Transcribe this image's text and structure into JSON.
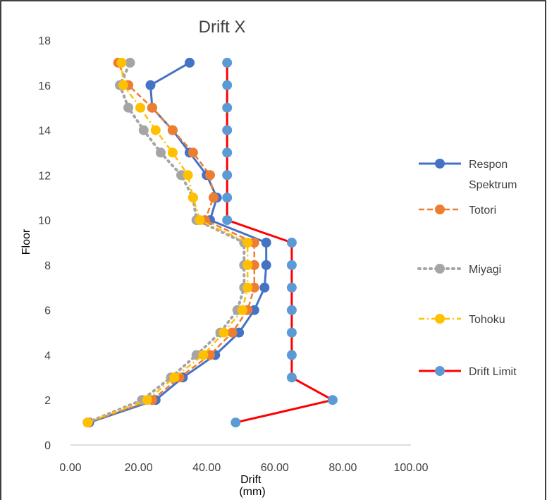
{
  "chart_data": {
    "type": "scatter",
    "title": "Drift X",
    "xlabel": "Drift\n(mm)",
    "ylabel": "Floor",
    "xlim": [
      0,
      100
    ],
    "ylim": [
      0,
      18
    ],
    "xticks": [
      "0.00",
      "20.00",
      "40.00",
      "60.00",
      "80.00",
      "100.00"
    ],
    "yticks": [
      "0",
      "2",
      "4",
      "6",
      "8",
      "10",
      "12",
      "14",
      "16",
      "18"
    ],
    "grid": false,
    "legend_position": "right",
    "series": [
      {
        "name": "Respon Spektrum",
        "color": "#4472c4",
        "line_style": "solid",
        "points": [
          {
            "x": 5.5,
            "y": 1
          },
          {
            "x": 25,
            "y": 2
          },
          {
            "x": 33,
            "y": 3
          },
          {
            "x": 42.5,
            "y": 4
          },
          {
            "x": 49.5,
            "y": 5
          },
          {
            "x": 54,
            "y": 6
          },
          {
            "x": 57,
            "y": 7
          },
          {
            "x": 57.5,
            "y": 8
          },
          {
            "x": 57.5,
            "y": 9
          },
          {
            "x": 41,
            "y": 10
          },
          {
            "x": 43,
            "y": 11
          },
          {
            "x": 40,
            "y": 12
          },
          {
            "x": 35,
            "y": 13
          },
          {
            "x": 30,
            "y": 14
          },
          {
            "x": 24,
            "y": 15
          },
          {
            "x": 23.5,
            "y": 16
          },
          {
            "x": 35,
            "y": 17
          }
        ]
      },
      {
        "name": "Totori",
        "color": "#ed7d31",
        "line_style": "dashed",
        "points": [
          {
            "x": 5.2,
            "y": 1
          },
          {
            "x": 24,
            "y": 2
          },
          {
            "x": 32,
            "y": 3
          },
          {
            "x": 41,
            "y": 4
          },
          {
            "x": 47.5,
            "y": 5
          },
          {
            "x": 52,
            "y": 6
          },
          {
            "x": 54,
            "y": 7
          },
          {
            "x": 54,
            "y": 8
          },
          {
            "x": 54,
            "y": 9
          },
          {
            "x": 39.5,
            "y": 10
          },
          {
            "x": 42,
            "y": 11
          },
          {
            "x": 41,
            "y": 12
          },
          {
            "x": 36,
            "y": 13
          },
          {
            "x": 30,
            "y": 14
          },
          {
            "x": 24,
            "y": 15
          },
          {
            "x": 17,
            "y": 16
          },
          {
            "x": 14,
            "y": 17
          }
        ]
      },
      {
        "name": "Miyagi",
        "color": "#a5a5a5",
        "line_style": "dotted",
        "points": [
          {
            "x": 5,
            "y": 1
          },
          {
            "x": 21,
            "y": 2
          },
          {
            "x": 29.5,
            "y": 3
          },
          {
            "x": 37,
            "y": 4
          },
          {
            "x": 44,
            "y": 5
          },
          {
            "x": 49,
            "y": 6
          },
          {
            "x": 51,
            "y": 7
          },
          {
            "x": 51,
            "y": 8
          },
          {
            "x": 51,
            "y": 9
          },
          {
            "x": 37,
            "y": 10
          },
          {
            "x": 36,
            "y": 11
          },
          {
            "x": 32.5,
            "y": 12
          },
          {
            "x": 26.5,
            "y": 13
          },
          {
            "x": 21.5,
            "y": 14
          },
          {
            "x": 17,
            "y": 15
          },
          {
            "x": 14.5,
            "y": 16
          },
          {
            "x": 17.5,
            "y": 17
          }
        ]
      },
      {
        "name": "Tohoku",
        "color": "#ffc000",
        "line_style": "dashdot",
        "points": [
          {
            "x": 5,
            "y": 1
          },
          {
            "x": 22.5,
            "y": 2
          },
          {
            "x": 30.5,
            "y": 3
          },
          {
            "x": 39,
            "y": 4
          },
          {
            "x": 45,
            "y": 5
          },
          {
            "x": 50.5,
            "y": 6
          },
          {
            "x": 52,
            "y": 7
          },
          {
            "x": 52,
            "y": 8
          },
          {
            "x": 52,
            "y": 9
          },
          {
            "x": 38,
            "y": 10
          },
          {
            "x": 36,
            "y": 11
          },
          {
            "x": 34.5,
            "y": 12
          },
          {
            "x": 30,
            "y": 13
          },
          {
            "x": 25,
            "y": 14
          },
          {
            "x": 20.5,
            "y": 15
          },
          {
            "x": 15.5,
            "y": 16
          },
          {
            "x": 15,
            "y": 17
          }
        ]
      },
      {
        "name": "Drift Limit",
        "color": "#ff0000",
        "marker_color": "#5b9bd5",
        "line_style": "solid",
        "points": [
          {
            "x": 48.5,
            "y": 1
          },
          {
            "x": 77,
            "y": 2
          },
          {
            "x": 65,
            "y": 3
          },
          {
            "x": 65,
            "y": 4
          },
          {
            "x": 65,
            "y": 5
          },
          {
            "x": 65,
            "y": 6
          },
          {
            "x": 65,
            "y": 7
          },
          {
            "x": 65,
            "y": 8
          },
          {
            "x": 65,
            "y": 9
          },
          {
            "x": 46,
            "y": 10
          },
          {
            "x": 46,
            "y": 11
          },
          {
            "x": 46,
            "y": 12
          },
          {
            "x": 46,
            "y": 13
          },
          {
            "x": 46,
            "y": 14
          },
          {
            "x": 46,
            "y": 15
          },
          {
            "x": 46,
            "y": 16
          },
          {
            "x": 46,
            "y": 17
          }
        ]
      }
    ],
    "legend": [
      {
        "label_lines": [
          "Respon",
          "Spektrum"
        ]
      },
      {
        "label_lines": [
          "Totori"
        ]
      },
      {
        "label_lines": [
          "Miyagi"
        ]
      },
      {
        "label_lines": [
          "Tohoku"
        ]
      },
      {
        "label_lines": [
          "Drift Limit"
        ]
      }
    ]
  }
}
